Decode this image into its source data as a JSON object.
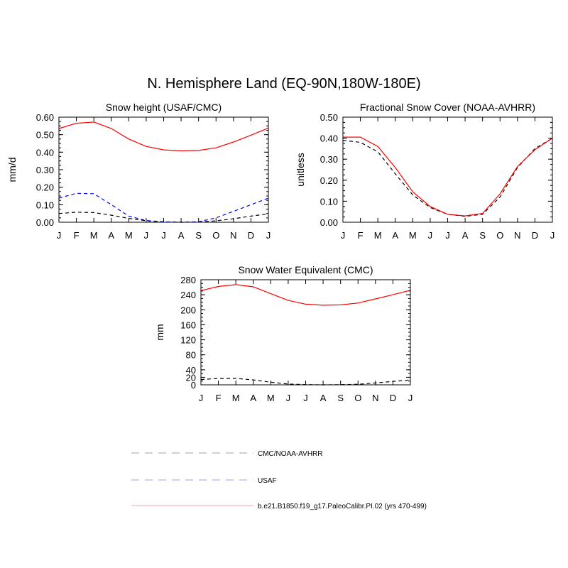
{
  "figure_title": "N. Hemisphere Land (EQ-90N,180W-180E)",
  "colors": {
    "obs1": "#000000",
    "obs2": "#0000ff",
    "model": "#ff0000",
    "legend_obs1": "#b3b3b3",
    "legend_obs2": "#b3b3f0",
    "legend_model": "#ffb3b3"
  },
  "legend": [
    {
      "label": "CMC/NOAA-AVHRR",
      "style": "dashed",
      "color_key": "legend_obs1"
    },
    {
      "label": "USAF",
      "style": "dashed",
      "color_key": "legend_obs2"
    },
    {
      "label": "b.e21.B1850.f19_g17.PaleoCalibr.PI.02 (yrs 470-499)",
      "style": "solid",
      "color_key": "legend_model"
    }
  ],
  "chart_data": [
    {
      "type": "line",
      "title": "Snow height (USAF/CMC)",
      "xlabel": "",
      "ylabel": "mm/d",
      "ylim": [
        0,
        0.6
      ],
      "yticks": [
        "0.00",
        "0.10",
        "0.20",
        "0.30",
        "0.40",
        "0.50",
        "0.60"
      ],
      "categories": [
        "J",
        "F",
        "M",
        "A",
        "M",
        "J",
        "J",
        "A",
        "S",
        "O",
        "N",
        "D",
        "J"
      ],
      "series": [
        {
          "name": "CMC",
          "style": "dashed",
          "color_key": "obs1",
          "values": [
            0.05,
            0.057,
            0.055,
            0.04,
            0.022,
            0.008,
            0.002,
            0.0,
            0.001,
            0.008,
            0.02,
            0.035,
            0.048
          ]
        },
        {
          "name": "USAF",
          "style": "dashed",
          "color_key": "obs2",
          "values": [
            0.138,
            0.165,
            0.163,
            0.1,
            0.035,
            0.01,
            0.002,
            0.0,
            0.003,
            0.025,
            0.062,
            0.1,
            0.138
          ]
        },
        {
          "name": "model",
          "style": "solid",
          "color_key": "model",
          "values": [
            0.535,
            0.565,
            0.572,
            0.535,
            0.475,
            0.433,
            0.413,
            0.408,
            0.41,
            0.425,
            0.458,
            0.497,
            0.538
          ]
        }
      ]
    },
    {
      "type": "line",
      "title": "Fractional Snow Cover (NOAA-AVHRR)",
      "xlabel": "",
      "ylabel": "unitless",
      "ylim": [
        0,
        0.5
      ],
      "yticks": [
        "0.00",
        "0.10",
        "0.20",
        "0.30",
        "0.40",
        "0.50"
      ],
      "categories": [
        "J",
        "F",
        "M",
        "A",
        "M",
        "J",
        "J",
        "A",
        "S",
        "O",
        "N",
        "D",
        "J"
      ],
      "series": [
        {
          "name": "NOAA-AVHRR",
          "style": "dashed",
          "color_key": "obs1",
          "values": [
            0.39,
            0.38,
            0.335,
            0.23,
            0.13,
            0.07,
            0.038,
            0.028,
            0.038,
            0.12,
            0.26,
            0.35,
            0.4
          ]
        },
        {
          "name": "model",
          "style": "solid",
          "color_key": "model",
          "values": [
            0.405,
            0.405,
            0.36,
            0.26,
            0.145,
            0.075,
            0.038,
            0.03,
            0.042,
            0.135,
            0.265,
            0.345,
            0.4
          ]
        }
      ]
    },
    {
      "type": "line",
      "title": "Snow Water Equivalent (CMC)",
      "xlabel": "",
      "ylabel": "mm",
      "ylim": [
        0,
        280
      ],
      "yticks": [
        "0",
        "20",
        "40",
        "80",
        "120",
        "160",
        "200",
        "240",
        "280"
      ],
      "categories": [
        "J",
        "F",
        "M",
        "A",
        "M",
        "J",
        "J",
        "A",
        "S",
        "O",
        "N",
        "D",
        "J"
      ],
      "series": [
        {
          "name": "CMC",
          "style": "dashed",
          "color_key": "obs1",
          "values": [
            14,
            17,
            17,
            13,
            7,
            2,
            0.5,
            0,
            0.3,
            1.5,
            5,
            9,
            13
          ]
        },
        {
          "name": "model",
          "style": "solid",
          "color_key": "model",
          "values": [
            251,
            262,
            267,
            261,
            243,
            225,
            215,
            212,
            213,
            218,
            229,
            240,
            252
          ]
        }
      ]
    }
  ]
}
